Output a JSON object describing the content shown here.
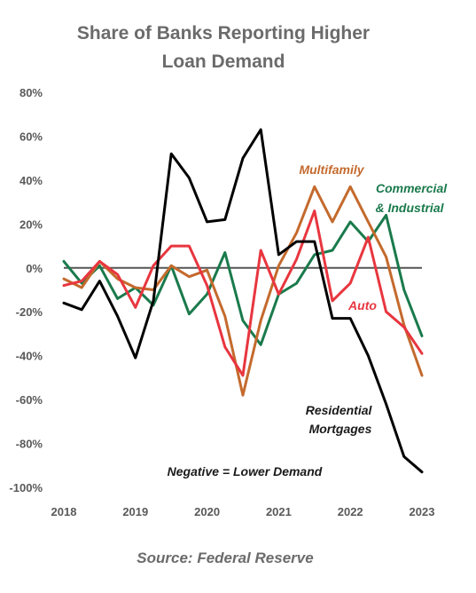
{
  "chart_data": {
    "type": "line",
    "title": [
      "Share of Banks Reporting Higher",
      "Loan Demand"
    ],
    "source": "Source: Federal Reserve",
    "note": "Negative = Lower Demand",
    "xlim": [
      2018,
      2023
    ],
    "ylim": [
      -100,
      80
    ],
    "x_ticks": [
      "2018",
      "2019",
      "2020",
      "2021",
      "2022",
      "2023"
    ],
    "y_ticks": [
      "80%",
      "60%",
      "40%",
      "20%",
      "0%",
      "-20%",
      "-40%",
      "-60%",
      "-80%",
      "-100%"
    ],
    "x": [
      2018.0,
      2018.25,
      2018.5,
      2018.75,
      2019.0,
      2019.25,
      2019.5,
      2019.75,
      2020.0,
      2020.25,
      2020.5,
      2020.75,
      2021.0,
      2021.25,
      2021.5,
      2021.75,
      2022.0,
      2022.25,
      2022.5,
      2022.75,
      2023.0
    ],
    "series": [
      {
        "name": "Residential Mortgages",
        "label_lines": [
          "Residential",
          "Mortgages"
        ],
        "color": "#000000",
        "values": [
          -16,
          -19,
          -6,
          -22,
          -41,
          -15,
          52,
          41,
          21,
          22,
          50,
          63,
          6,
          12,
          12,
          -23,
          -23,
          -40,
          -62,
          -86,
          -93
        ]
      },
      {
        "name": "Commercial & Industrial",
        "label_lines": [
          "Commercial",
          "& Industrial"
        ],
        "color": "#1a7a4c",
        "values": [
          3,
          -7,
          1,
          -14,
          -9,
          -17,
          1,
          -21,
          -12,
          7,
          -24,
          -35,
          -12,
          -7,
          6,
          8,
          21,
          12,
          24,
          -10,
          -31
        ]
      },
      {
        "name": "Multifamily",
        "label_lines": [
          "Multifamily"
        ],
        "color": "#c46a2d",
        "values": [
          -5,
          -9,
          3,
          -5,
          -9,
          -10,
          1,
          -4,
          -1,
          -22,
          -58,
          -24,
          1,
          16,
          37,
          21,
          37,
          21,
          5,
          -26,
          -49
        ]
      },
      {
        "name": "Auto",
        "label_lines": [
          "Auto"
        ],
        "color": "#e8363f",
        "values": [
          -8,
          -6,
          3,
          -3,
          -18,
          1,
          10,
          10,
          -8,
          -36,
          -49,
          8,
          -12,
          4,
          26,
          -15,
          -7,
          14,
          -20,
          -27,
          -39
        ]
      }
    ]
  }
}
